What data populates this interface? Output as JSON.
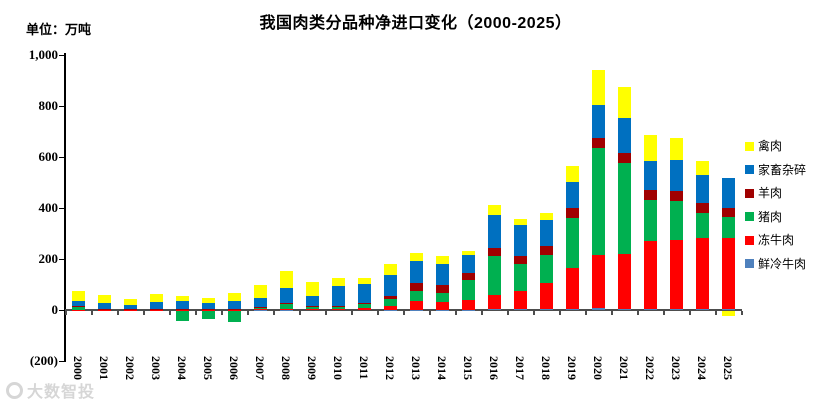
{
  "header": {
    "title": "我国肉类分品种净进口变化（2000-2025）",
    "unit_label": "单位：万吨"
  },
  "watermark": {
    "text": "大数智投"
  },
  "chart_data": {
    "type": "bar",
    "stacked": true,
    "title": "我国肉类分品种净进口变化（2000-2025）",
    "ylabel": "单位：万吨",
    "ylim": [
      -200,
      1000
    ],
    "grid": false,
    "legend_position": "right",
    "yticks": [
      {
        "value": 1000,
        "label": "1,000"
      },
      {
        "value": 800,
        "label": "800"
      },
      {
        "value": 600,
        "label": "600"
      },
      {
        "value": 400,
        "label": "400"
      },
      {
        "value": 200,
        "label": "200"
      },
      {
        "value": 0,
        "label": "0"
      },
      {
        "value": -200,
        "label": "(200)"
      }
    ],
    "categories": [
      "2000",
      "2001",
      "2002",
      "2003",
      "2004",
      "2005",
      "2006",
      "2007",
      "2008",
      "2009",
      "2010",
      "2011",
      "2012",
      "2013",
      "2014",
      "2015",
      "2016",
      "2017",
      "2018",
      "2019",
      "2020",
      "2021",
      "2022",
      "2023",
      "2024",
      "2025"
    ],
    "series": [
      {
        "name": "鲜冷牛肉",
        "color": "#4F81BD",
        "values": [
          0,
          0,
          0,
          0,
          0,
          0,
          0,
          1,
          1,
          0,
          0,
          0,
          1,
          1,
          1,
          1,
          2,
          2,
          3,
          4,
          6,
          5,
          4,
          4,
          4,
          4
        ]
      },
      {
        "name": "冻牛肉",
        "color": "#FF0000",
        "values": [
          1,
          1,
          1,
          1,
          1,
          1,
          1,
          1,
          3,
          2,
          2,
          7,
          16,
          33,
          30,
          39,
          58,
          72,
          102,
          160,
          208,
          215,
          268,
          272,
          280,
          278
        ]
      },
      {
        "name": "猪肉",
        "color": "#00B050",
        "values": [
          12,
          3,
          2,
          2,
          -38,
          -33,
          -43,
          8,
          18,
          10,
          13,
          17,
          26,
          39,
          35,
          78,
          150,
          108,
          111,
          195,
          420,
          355,
          160,
          150,
          97,
          84
        ]
      },
      {
        "name": "羊肉",
        "color": "#A00000",
        "values": [
          1,
          1,
          1,
          2,
          1,
          1,
          1,
          2,
          4,
          2,
          2,
          5,
          10,
          33,
          33,
          26,
          33,
          29,
          35,
          40,
          39,
          39,
          39,
          40,
          39,
          33
        ]
      },
      {
        "name": "家畜杂碎",
        "color": "#0070C0",
        "values": [
          20,
          24,
          15,
          26,
          34,
          24,
          32,
          36,
          60,
          42,
          76,
          72,
          85,
          85,
          81,
          72,
          130,
          121,
          102,
          103,
          131,
          137,
          112,
          124,
          111,
          118
        ]
      },
      {
        "name": "禽肉",
        "color": "#FFFF00",
        "values": [
          42,
          30,
          24,
          32,
          17,
          20,
          33,
          50,
          65,
          55,
          31,
          26,
          43,
          33,
          30,
          16,
          39,
          26,
          29,
          62,
          137,
          124,
          103,
          85,
          55,
          -20
        ]
      }
    ],
    "legend_order": [
      "禽肉",
      "家畜杂碎",
      "羊肉",
      "猪肉",
      "冻牛肉",
      "鲜冷牛肉"
    ]
  }
}
